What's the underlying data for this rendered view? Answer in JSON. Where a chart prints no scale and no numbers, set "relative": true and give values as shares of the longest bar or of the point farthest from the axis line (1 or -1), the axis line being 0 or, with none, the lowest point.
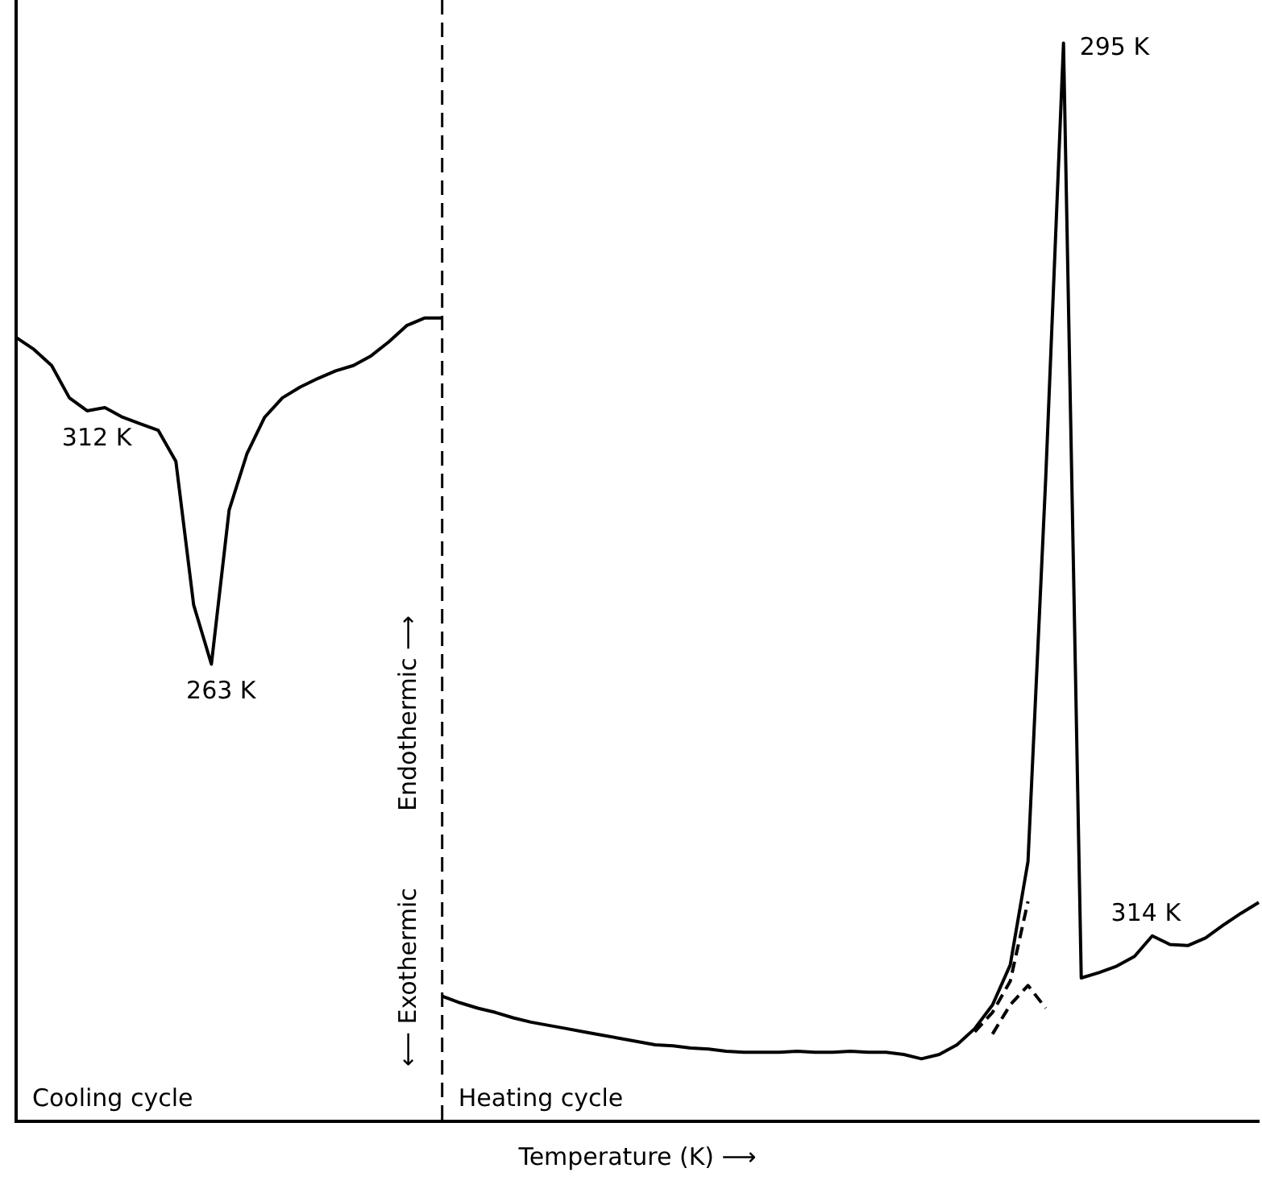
{
  "chart_data": {
    "type": "line",
    "relative": true,
    "xlabel": "Temperature (K) ⟶",
    "ylabel": "⟵ Exothermic          Endothermic ⟶",
    "legend": false,
    "grid": false,
    "categories": [
      null,
      null,
      null,
      null,
      null,
      null,
      null,
      null,
      null,
      null,
      null,
      null,
      null,
      null,
      null,
      null,
      null,
      null,
      null,
      null,
      null,
      null,
      null,
      null,
      null,
      null,
      null,
      null,
      null,
      null,
      null,
      null,
      null,
      null,
      null,
      null,
      null,
      null,
      null,
      null,
      null,
      null,
      null,
      null,
      null,
      null,
      null,
      null,
      null,
      null,
      null,
      null,
      null,
      null,
      null,
      null,
      null,
      null,
      null,
      null,
      null,
      null,
      null,
      null,
      null,
      null,
      null,
      null,
      null,
      null,
      null
    ],
    "series": [
      {
        "color": "#000000",
        "values": [
          0.727,
          0.716,
          0.701,
          0.671,
          0.659,
          0.662,
          0.653,
          0.647,
          0.641,
          0.612,
          0.479,
          0.424,
          0.567,
          0.619,
          0.653,
          0.671,
          0.681,
          0.689,
          0.696,
          0.701,
          0.71,
          0.723,
          0.738,
          0.745,
          0.745,
          null,
          null,
          null,
          null,
          null,
          null,
          null,
          null,
          null,
          null,
          null,
          null,
          null,
          null,
          null,
          null,
          null,
          null,
          null,
          null,
          null,
          null,
          null,
          null,
          null,
          null,
          null,
          null,
          null,
          null,
          null,
          null,
          null,
          null,
          null,
          null,
          null,
          null,
          null,
          null,
          null,
          null,
          null,
          null,
          null,
          null
        ]
      },
      {
        "color": "#000000",
        "values": [
          null,
          null,
          null,
          null,
          null,
          null,
          null,
          null,
          null,
          null,
          null,
          null,
          null,
          null,
          null,
          null,
          null,
          null,
          null,
          null,
          null,
          null,
          null,
          null,
          0.116,
          0.11,
          0.105,
          0.101,
          0.096,
          0.092,
          0.089,
          0.086,
          0.083,
          0.08,
          0.077,
          0.074,
          0.071,
          0.07,
          0.068,
          0.067,
          0.065,
          0.064,
          0.064,
          0.064,
          0.065,
          0.064,
          0.064,
          0.065,
          0.064,
          0.064,
          0.062,
          0.058,
          0.062,
          0.071,
          0.086,
          0.108,
          0.145,
          0.241,
          0.597,
          1,
          0.133,
          0.138,
          0.144,
          0.153,
          0.172,
          0.164,
          0.163,
          0.17,
          0.182,
          0.193,
          0.203
        ]
      },
      {
        "color": "#000000",
        "line_style": "dashed",
        "values": [
          null,
          null,
          null,
          null,
          null,
          null,
          null,
          null,
          null,
          null,
          null,
          null,
          null,
          null,
          null,
          null,
          null,
          null,
          null,
          null,
          null,
          null,
          null,
          null,
          null,
          null,
          null,
          null,
          null,
          null,
          null,
          null,
          null,
          null,
          null,
          null,
          null,
          null,
          null,
          null,
          null,
          null,
          null,
          null,
          null,
          null,
          null,
          null,
          null,
          null,
          null,
          null,
          null,
          null,
          0.083,
          0.101,
          0.13,
          0.204,
          null,
          null,
          null,
          null,
          null,
          null,
          null,
          null,
          null,
          null,
          null,
          null,
          null
        ]
      },
      {
        "color": "#000000",
        "line_style": "dashed",
        "values": [
          null,
          null,
          null,
          null,
          null,
          null,
          null,
          null,
          null,
          null,
          null,
          null,
          null,
          null,
          null,
          null,
          null,
          null,
          null,
          null,
          null,
          null,
          null,
          null,
          null,
          null,
          null,
          null,
          null,
          null,
          null,
          null,
          null,
          null,
          null,
          null,
          null,
          null,
          null,
          null,
          null,
          null,
          null,
          null,
          null,
          null,
          null,
          null,
          null,
          null,
          null,
          null,
          null,
          null,
          null,
          0.081,
          0.108,
          0.126,
          0.105,
          null,
          null,
          null,
          null,
          null,
          null,
          null,
          null,
          null,
          null,
          null,
          null
        ]
      }
    ],
    "annotations": [
      "Cooling cycle",
      "Heating cycle",
      {
        "text": "312 K",
        "y": 0.659
      },
      {
        "text": "263 K",
        "y": 0.424
      },
      "295 K",
      {
        "text": "314 K",
        "y": 0.172
      }
    ]
  }
}
